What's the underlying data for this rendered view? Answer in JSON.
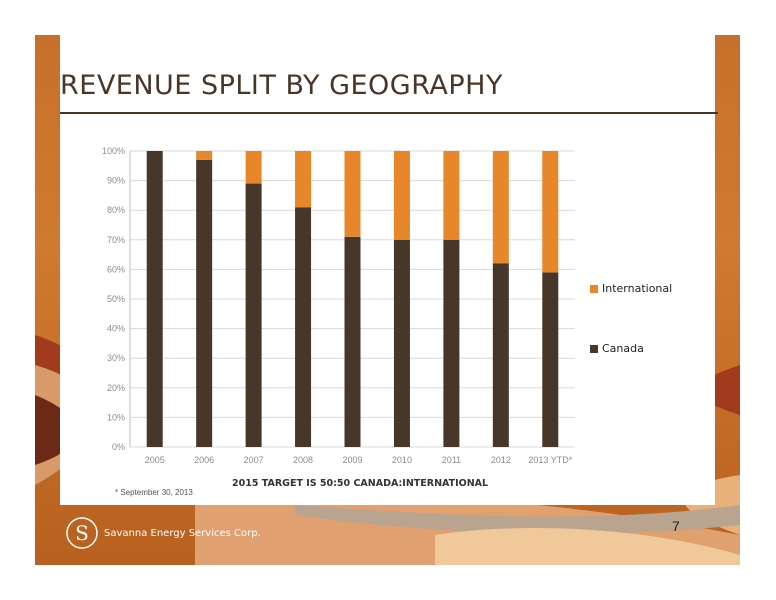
{
  "slide": {
    "title": "REVENUE SPLIT BY GEOGRAPHY",
    "page_number": "7",
    "target_text": "2015 TARGET IS 50:50 CANADA:INTERNATIONAL",
    "footnote": "* September 30, 2013",
    "company_name": "Savanna Energy Services Corp.",
    "logo_mark": "S"
  },
  "colors": {
    "canada": "#47372a",
    "international": "#e8862a",
    "title": "#4a3526",
    "grid": "#d9d9d9",
    "tick_label": "#8c8c8c"
  },
  "legend": {
    "items": [
      {
        "name": "International",
        "color": "#e8862a"
      },
      {
        "name": "Canada",
        "color": "#47372a"
      }
    ]
  },
  "chart_data": {
    "type": "bar",
    "stacked": true,
    "percent": true,
    "categories": [
      "2005",
      "2006",
      "2007",
      "2008",
      "2009",
      "2010",
      "2011",
      "2012",
      "2013 YTD*"
    ],
    "series": [
      {
        "name": "Canada",
        "values": [
          100,
          97,
          89,
          81,
          71,
          70,
          70,
          62,
          59
        ]
      },
      {
        "name": "International",
        "values": [
          0,
          3,
          11,
          19,
          29,
          30,
          30,
          38,
          41
        ]
      }
    ],
    "ylim": [
      0,
      100
    ],
    "yticks": [
      "0%",
      "10%",
      "20%",
      "30%",
      "40%",
      "50%",
      "60%",
      "70%",
      "80%",
      "90%",
      "100%"
    ],
    "grid": true,
    "legend_position": "right"
  }
}
